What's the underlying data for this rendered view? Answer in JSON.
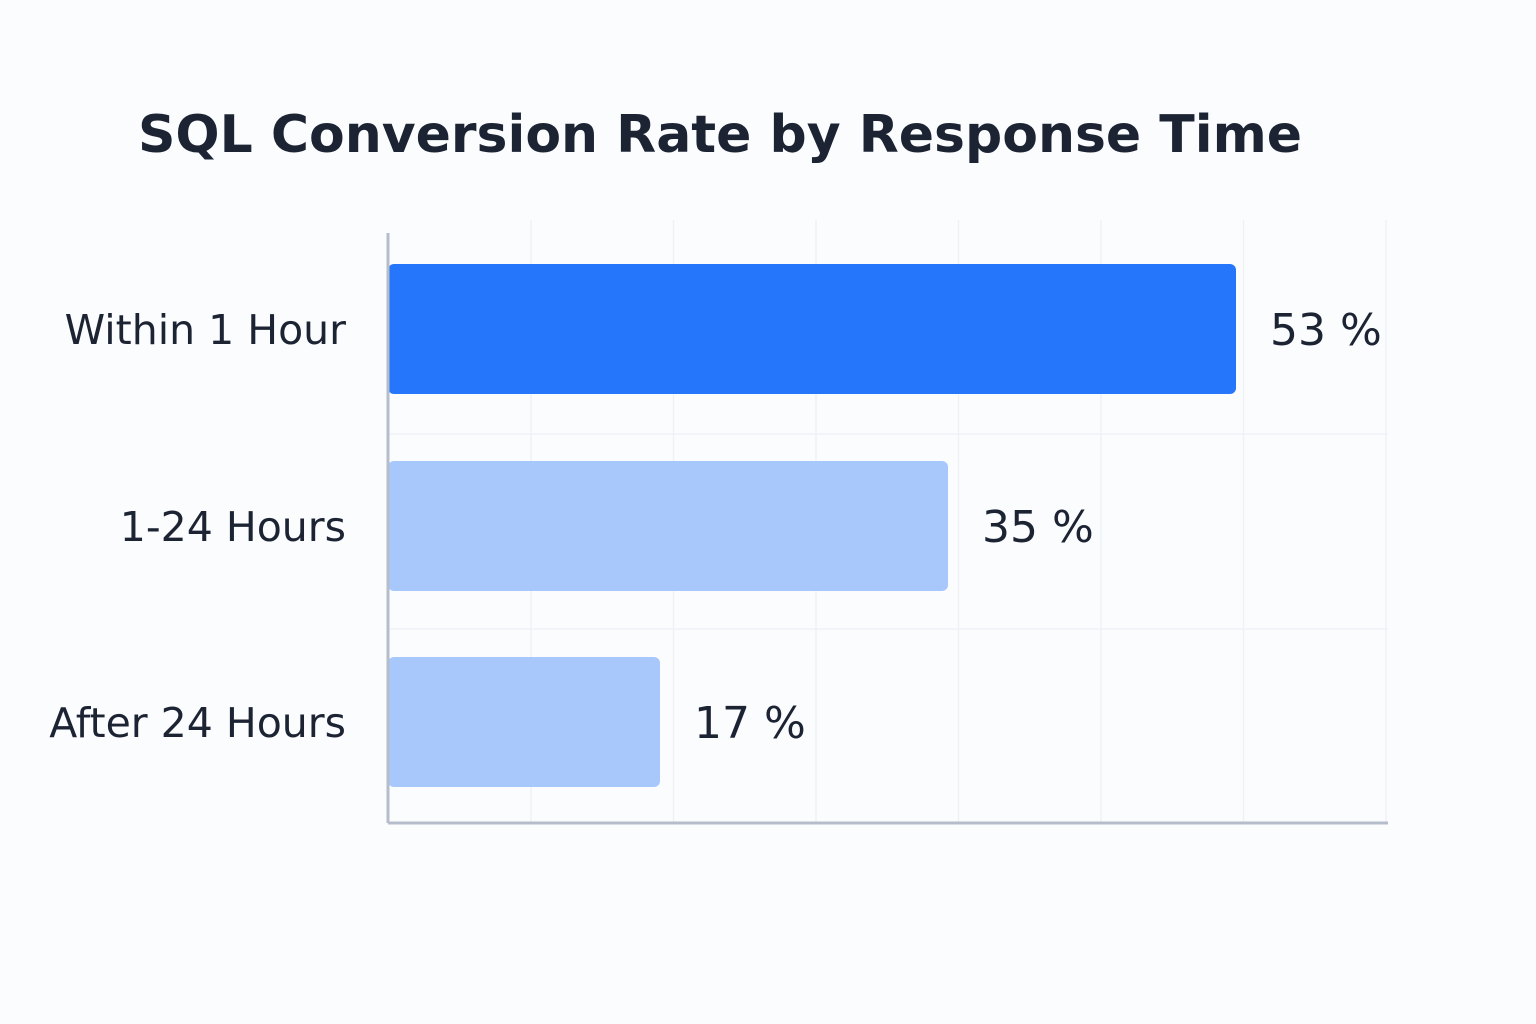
{
  "chart_data": {
    "type": "bar",
    "orientation": "horizontal",
    "title": "SQL Conversion Rate by Response Time",
    "xlabel": "",
    "ylabel": "",
    "categories": [
      "Within 1 Hour",
      "1-24 Hours",
      "After 24 Hours"
    ],
    "values": [
      53,
      35,
      17
    ],
    "value_labels": [
      "53 %",
      "35 %",
      "17 %"
    ],
    "unit": "%",
    "xlim": [
      0,
      62.5
    ],
    "grid": true,
    "legend": "none",
    "colors": {
      "highlight": "#2576fb",
      "default": "#a8c8fc"
    },
    "highlight_index": 0
  }
}
